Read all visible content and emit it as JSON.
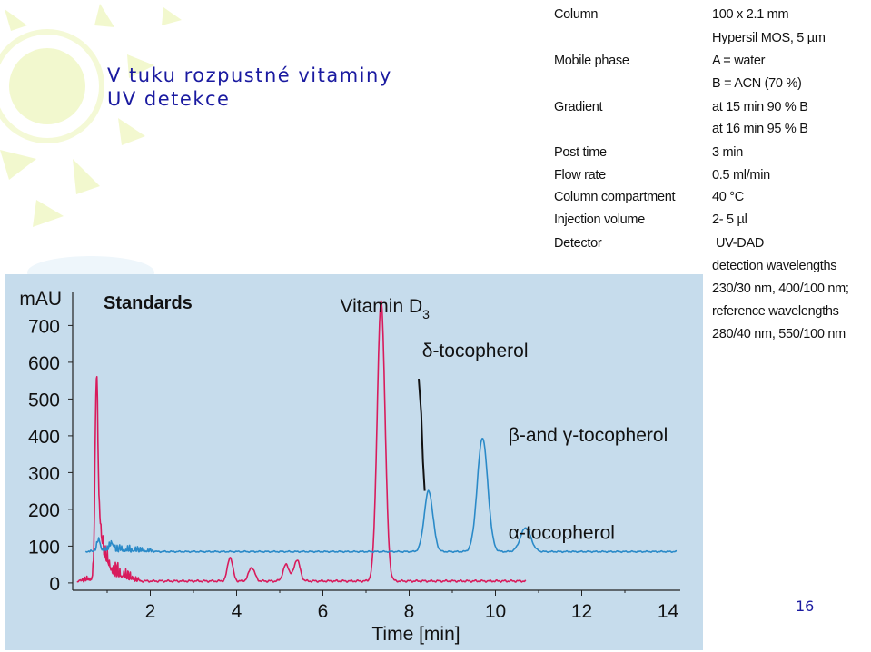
{
  "slide": {
    "title_line1": "V tuku rozpustné vitaminy",
    "title_line2": "UV detekce",
    "page_number": "16"
  },
  "conditions": [
    {
      "label": "Column",
      "values": [
        "100 x 2.1 mm",
        "Hypersil MOS, 5 µm"
      ]
    },
    {
      "label": "Mobile phase",
      "values": [
        "A = water",
        "B = ACN (70 %)"
      ]
    },
    {
      "label": "Gradient",
      "values": [
        "at 15 min 90 % B",
        "at 16 min 95 % B"
      ]
    },
    {
      "label": "Post time",
      "values": [
        "3 min"
      ]
    },
    {
      "label": "Flow rate",
      "values": [
        "0.5 ml/min"
      ]
    },
    {
      "label": "Column compartment",
      "values": [
        "40 °C"
      ]
    },
    {
      "label": "Injection volume",
      "values": [
        "2- 5 µl"
      ]
    },
    {
      "label": "Detector",
      "values": [
        "UV-DAD",
        "detection wavelengths",
        "230/30 nm, 400/100 nm;",
        "reference wavelengths",
        "280/40 nm, 550/100 nm"
      ]
    }
  ],
  "colors": {
    "title": "#1a1aa0",
    "panel_background": "#c6dcec",
    "trace_red": "#d81b5c",
    "trace_blue": "#2a8ac8",
    "trace_black": "#111111",
    "decoration": "#eef6c4"
  },
  "chart_data": {
    "type": "line",
    "title": "Standards",
    "xlabel": "Time [min]",
    "ylabel": "mAU",
    "xlim": [
      0.2,
      14.2
    ],
    "ylim": [
      -20,
      780
    ],
    "xticks": [
      2,
      4,
      6,
      8,
      10,
      12,
      14
    ],
    "yticks": [
      0,
      100,
      200,
      300,
      400,
      500,
      600,
      700
    ],
    "grid": false,
    "annotations": [
      {
        "id": "vitamin-d3",
        "text": "Vitamin D",
        "sub": "3",
        "x": 6.4,
        "y": 735
      },
      {
        "id": "delta-tocopherol",
        "text": "δ-tocopherol",
        "x": 8.3,
        "y": 615
      },
      {
        "id": "beta-gamma-tocopherol",
        "text": "β-and γ-tocopherol",
        "x": 10.3,
        "y": 385
      },
      {
        "id": "alpha-tocopherol",
        "text": "α-tocopherol",
        "x": 10.3,
        "y": 120
      }
    ],
    "series": [
      {
        "color": "#d81b5c",
        "baseline": 5,
        "x_range": [
          0.3,
          10.7
        ],
        "wander": 3,
        "noise": [
          0.35,
          1.8,
          40
        ],
        "peaks": [
          {
            "t": 0.75,
            "h": 435,
            "w": 0.03
          },
          {
            "t": 0.8,
            "h": 150,
            "w": 0.06
          },
          {
            "t": 0.95,
            "h": 55,
            "w": 0.1
          },
          {
            "t": 1.3,
            "h": 10,
            "w": 0.15
          },
          {
            "t": 3.85,
            "h": 65,
            "w": 0.06
          },
          {
            "t": 4.35,
            "h": 37,
            "w": 0.07
          },
          {
            "t": 5.15,
            "h": 45,
            "w": 0.07
          },
          {
            "t": 5.4,
            "h": 58,
            "w": 0.07
          },
          {
            "t": 7.35,
            "h": 760,
            "w": 0.09
          }
        ]
      },
      {
        "color": "#2a8ac8",
        "baseline": 85,
        "x_range": [
          0.5,
          14.2
        ],
        "wander": 2,
        "noise": [
          0.5,
          2.2,
          18
        ],
        "peaks": [
          {
            "t": 0.8,
            "h": 30,
            "w": 0.04
          },
          {
            "t": 1.1,
            "h": 20,
            "w": 0.05
          },
          {
            "t": 8.45,
            "h": 165,
            "w": 0.1
          },
          {
            "t": 9.7,
            "h": 310,
            "w": 0.12
          },
          {
            "t": 10.7,
            "h": 65,
            "w": 0.12
          }
        ]
      },
      {
        "color": "#111111",
        "x": [
          8.22,
          8.28,
          8.32,
          8.36
        ],
        "y": [
          555,
          460,
          330,
          250
        ]
      }
    ]
  }
}
